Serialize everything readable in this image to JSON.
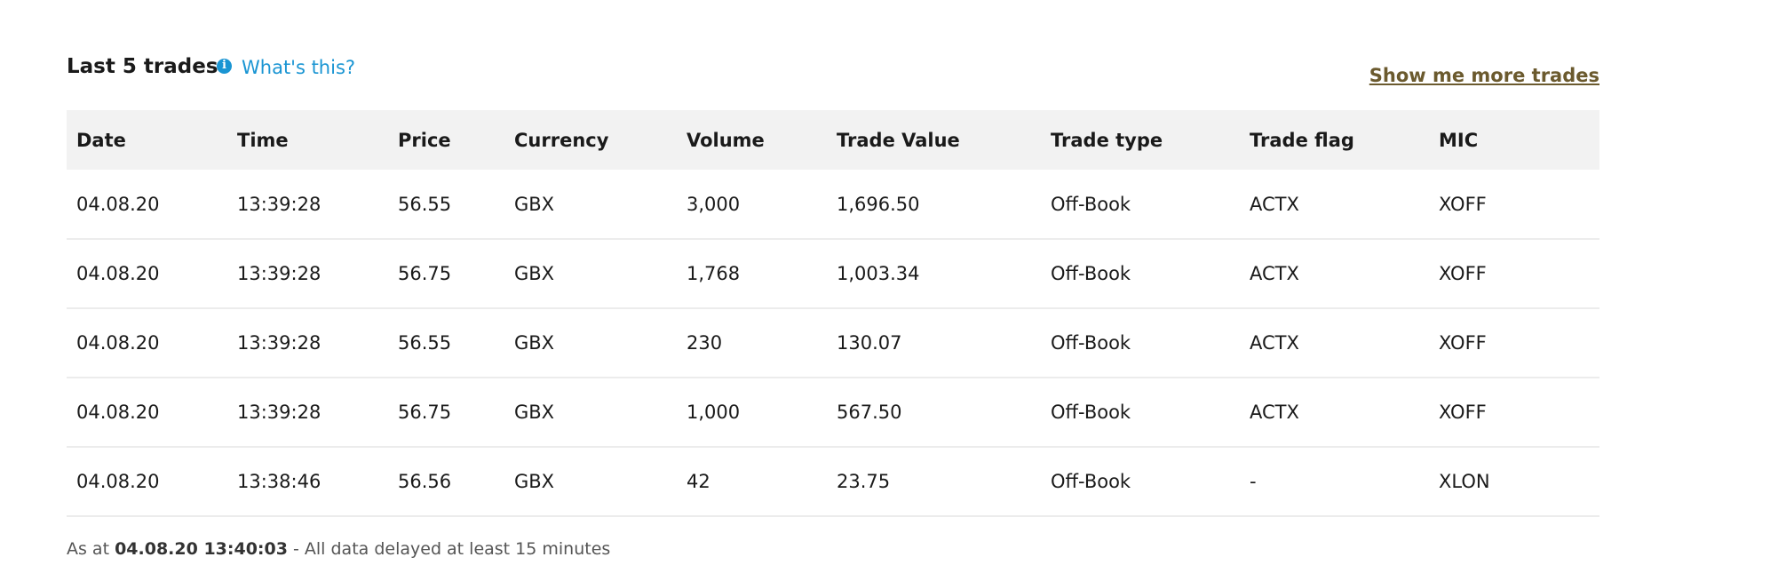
{
  "section": {
    "title": "Last 5 trades",
    "info_icon": "info-icon",
    "info_link": "What's this?",
    "more_link": "Show me more trades"
  },
  "table": {
    "columns": [
      "Date",
      "Time",
      "Price",
      "Currency",
      "Volume",
      "Trade Value",
      "Trade type",
      "Trade flag",
      "MIC"
    ],
    "rows": [
      [
        "04.08.20",
        "13:39:28",
        "56.55",
        "GBX",
        "3,000",
        "1,696.50",
        "Off-Book",
        "ACTX",
        "XOFF"
      ],
      [
        "04.08.20",
        "13:39:28",
        "56.75",
        "GBX",
        "1,768",
        "1,003.34",
        "Off-Book",
        "ACTX",
        "XOFF"
      ],
      [
        "04.08.20",
        "13:39:28",
        "56.55",
        "GBX",
        "230",
        "130.07",
        "Off-Book",
        "ACTX",
        "XOFF"
      ],
      [
        "04.08.20",
        "13:39:28",
        "56.75",
        "GBX",
        "1,000",
        "567.50",
        "Off-Book",
        "ACTX",
        "XOFF"
      ],
      [
        "04.08.20",
        "13:38:46",
        "56.56",
        "GBX",
        "42",
        "23.75",
        "Off-Book",
        "-",
        "XLON"
      ]
    ]
  },
  "footer": {
    "prefix": "As at ",
    "timestamp": "04.08.20 13:40:03",
    "suffix": " - All data delayed at least 15 minutes"
  },
  "colors": {
    "link": "#1a95d3",
    "more_link": "#6b5a2e",
    "header_bg": "#f2f2f2"
  }
}
